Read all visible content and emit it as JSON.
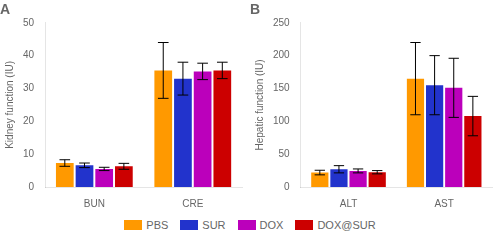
{
  "chart_data": [
    {
      "type": "bar",
      "title": "A",
      "ylabel": "Kidney function (IU)",
      "categories": [
        "BUN",
        "CRE"
      ],
      "series": [
        {
          "name": "PBS",
          "color": "#FF9900",
          "values": [
            7.3,
            35.5
          ],
          "errors": [
            1.0,
            8.5
          ]
        },
        {
          "name": "SUR",
          "color": "#2233CC",
          "values": [
            6.6,
            33.0
          ],
          "errors": [
            0.7,
            5.0
          ]
        },
        {
          "name": "DOX",
          "color": "#BB00BB",
          "values": [
            5.5,
            35.2
          ],
          "errors": [
            0.5,
            2.5
          ]
        },
        {
          "name": "DOX@SUR",
          "color": "#CC0000",
          "values": [
            6.3,
            35.5
          ],
          "errors": [
            0.9,
            2.5
          ]
        }
      ],
      "ylim": [
        0,
        50
      ],
      "yticks": [
        0,
        10,
        20,
        30,
        40,
        50
      ],
      "grid": false,
      "legend": "bottom"
    },
    {
      "type": "bar",
      "title": "B",
      "ylabel": "Hepatic function (IU)",
      "categories": [
        "ALT",
        "AST"
      ],
      "series": [
        {
          "name": "PBS",
          "color": "#FF9900",
          "values": [
            22.0,
            165.0
          ],
          "errors": [
            3.5,
            55.0
          ]
        },
        {
          "name": "SUR",
          "color": "#2233CC",
          "values": [
            27.0,
            155.0
          ],
          "errors": [
            5.5,
            45.0
          ]
        },
        {
          "name": "DOX",
          "color": "#BB00BB",
          "values": [
            24.5,
            151.0
          ],
          "errors": [
            3.0,
            45.0
          ]
        },
        {
          "name": "DOX@SUR",
          "color": "#CC0000",
          "values": [
            22.5,
            108.0
          ],
          "errors": [
            2.5,
            30.0
          ]
        }
      ],
      "ylim": [
        0,
        250
      ],
      "yticks": [
        0,
        50,
        100,
        150,
        200,
        250
      ],
      "grid": false
    }
  ]
}
